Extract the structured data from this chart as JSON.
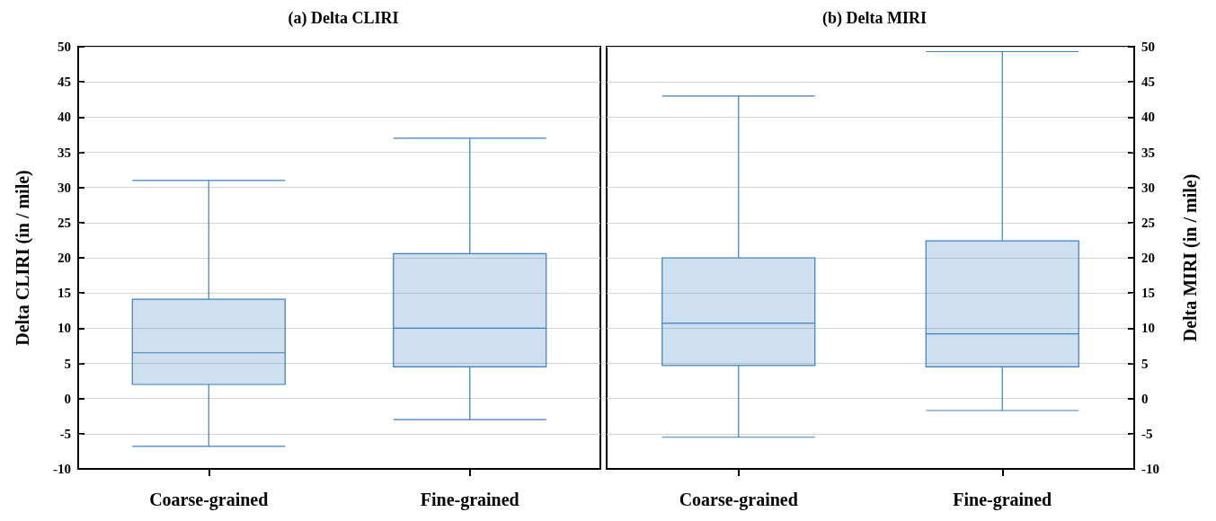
{
  "chart_data": [
    {
      "type": "box",
      "title": "(a) Delta CLIRI",
      "ylabel": "Delta CLIRI (in / mile)",
      "categories": [
        "Coarse-grained",
        "Fine-grained"
      ],
      "ylim": [
        -10,
        50
      ],
      "yticks": [
        -10,
        -5,
        0,
        5,
        10,
        15,
        20,
        25,
        30,
        35,
        40,
        45,
        50
      ],
      "grid": "y",
      "series": [
        {
          "color": "#3a7fc0",
          "boxes": [
            {
              "low": -6.8,
              "q1": 2,
              "median": 6.5,
              "q3": 14.1,
              "high": 31
            },
            {
              "low": -3,
              "q1": 4.5,
              "median": 10,
              "q3": 20.6,
              "high": 37
            }
          ]
        }
      ]
    },
    {
      "type": "box",
      "title": "(b) Delta MIRI",
      "y2label": "Delta MIRI (in / mile)",
      "categories": [
        "Coarse-grained",
        "Fine-grained"
      ],
      "y2lim": [
        -10,
        50
      ],
      "y2ticks": [
        -10,
        -5,
        0,
        5,
        10,
        15,
        20,
        25,
        30,
        35,
        40,
        45,
        50
      ],
      "grid": "y",
      "series": [
        {
          "color": "#3a7fc0",
          "axis": "y2",
          "boxes": [
            {
              "low": -5.5,
              "q1": 4.7,
              "median": 10.7,
              "q3": 20,
              "high": 43
            },
            {
              "low": -1.7,
              "q1": 4.5,
              "median": 9.2,
              "q3": 22.4,
              "high": 49.3
            }
          ]
        }
      ]
    }
  ]
}
